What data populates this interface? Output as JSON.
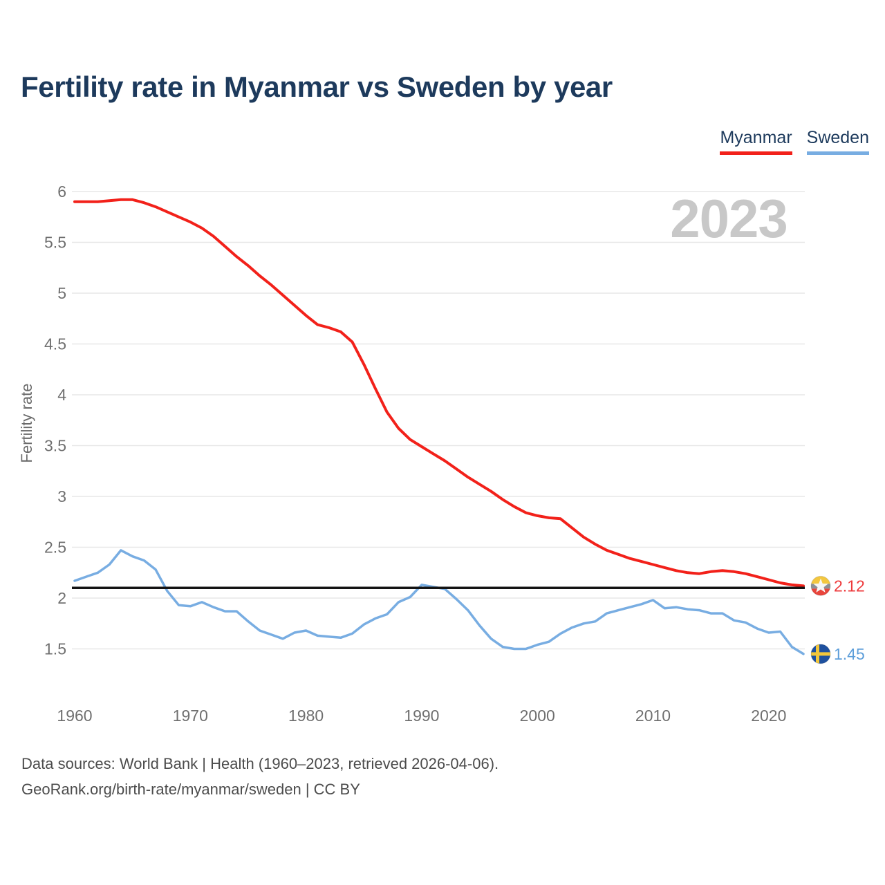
{
  "header": {
    "title": "Fertility rate in Myanmar vs Sweden by year"
  },
  "watermark": "2023",
  "chart_data": {
    "type": "line",
    "title": "Fertility rate in Myanmar vs Sweden by year",
    "xlabel": "",
    "ylabel": "Fertility rate",
    "x_start": 1960,
    "x_end": 2023,
    "x_ticks": [
      1960,
      1970,
      1980,
      1990,
      2000,
      2010,
      2020
    ],
    "y_ticks": [
      6,
      5.5,
      5,
      4.5,
      4,
      3.5,
      3,
      2.5,
      2,
      1.5
    ],
    "ylim": [
      1.5,
      6
    ],
    "grid": true,
    "legend_position": "top-right",
    "reference_line": {
      "value": 2.1,
      "color": "#141414"
    },
    "series": [
      {
        "name": "Myanmar",
        "color": "#f2211a",
        "label_color": "#ee3a3c",
        "end_label": "2.12",
        "flag": "myanmar",
        "values": [
          5.9,
          5.9,
          5.9,
          5.91,
          5.92,
          5.92,
          5.89,
          5.85,
          5.8,
          5.75,
          5.7,
          5.64,
          5.56,
          5.46,
          5.36,
          5.27,
          5.17,
          5.08,
          4.98,
          4.88,
          4.78,
          4.69,
          4.66,
          4.62,
          4.52,
          4.3,
          4.06,
          3.83,
          3.67,
          3.56,
          3.49,
          3.42,
          3.35,
          3.27,
          3.19,
          3.12,
          3.05,
          2.97,
          2.9,
          2.84,
          2.81,
          2.79,
          2.78,
          2.69,
          2.6,
          2.53,
          2.47,
          2.43,
          2.39,
          2.36,
          2.33,
          2.3,
          2.27,
          2.25,
          2.24,
          2.26,
          2.27,
          2.26,
          2.24,
          2.21,
          2.18,
          2.15,
          2.13,
          2.12
        ]
      },
      {
        "name": "Sweden",
        "color": "#78ade2",
        "label_color": "#5d9eda",
        "end_label": "1.45",
        "flag": "sweden",
        "values": [
          2.17,
          2.21,
          2.25,
          2.33,
          2.47,
          2.41,
          2.37,
          2.28,
          2.07,
          1.93,
          1.92,
          1.96,
          1.91,
          1.87,
          1.87,
          1.77,
          1.68,
          1.64,
          1.6,
          1.66,
          1.68,
          1.63,
          1.62,
          1.61,
          1.65,
          1.74,
          1.8,
          1.84,
          1.96,
          2.01,
          2.13,
          2.11,
          2.09,
          1.99,
          1.88,
          1.73,
          1.6,
          1.52,
          1.5,
          1.5,
          1.54,
          1.57,
          1.65,
          1.71,
          1.75,
          1.77,
          1.85,
          1.88,
          1.91,
          1.94,
          1.98,
          1.9,
          1.91,
          1.89,
          1.88,
          1.85,
          1.85,
          1.78,
          1.76,
          1.7,
          1.66,
          1.67,
          1.52,
          1.45
        ]
      }
    ]
  },
  "footer": {
    "line1": "Data sources: World Bank | Health (1960–2023, retrieved 2026-04-06).",
    "line2": "GeoRank.org/birth-rate/myanmar/sweden | CC BY"
  }
}
